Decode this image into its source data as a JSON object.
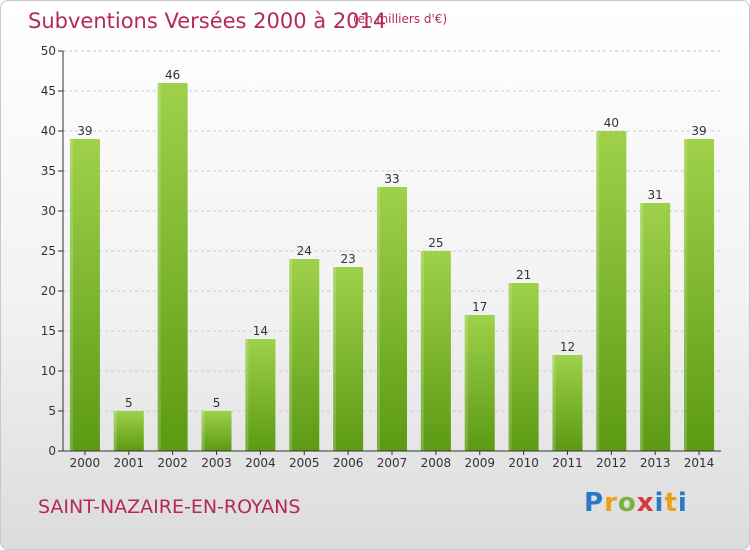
{
  "header": {
    "title": "Subventions Versées 2000 à 2014",
    "units": "(en milliers d'€)"
  },
  "footer": {
    "commune": "SAINT-NAZAIRE-EN-ROYANS",
    "logo_text": "Proxiti"
  },
  "colors": {
    "bar_light": "#9fd14a",
    "bar_dark": "#5c9a14",
    "title": "#b5285a",
    "axis": "#333333",
    "grid": "#cccccc"
  },
  "chart_data": {
    "type": "bar",
    "title": "Subventions Versées 2000 à 2014",
    "categories": [
      "2000",
      "2001",
      "2002",
      "2003",
      "2004",
      "2005",
      "2006",
      "2007",
      "2008",
      "2009",
      "2010",
      "2011",
      "2012",
      "2013",
      "2014"
    ],
    "values": [
      39,
      5,
      46,
      5,
      14,
      24,
      23,
      33,
      25,
      17,
      21,
      12,
      40,
      31,
      39
    ],
    "ylim": [
      0,
      50
    ],
    "yticks": [
      0,
      5,
      10,
      15,
      20,
      25,
      30,
      35,
      40,
      45,
      50
    ],
    "grid": "horizontal-dashed",
    "legend": "none",
    "data_labels": true
  }
}
